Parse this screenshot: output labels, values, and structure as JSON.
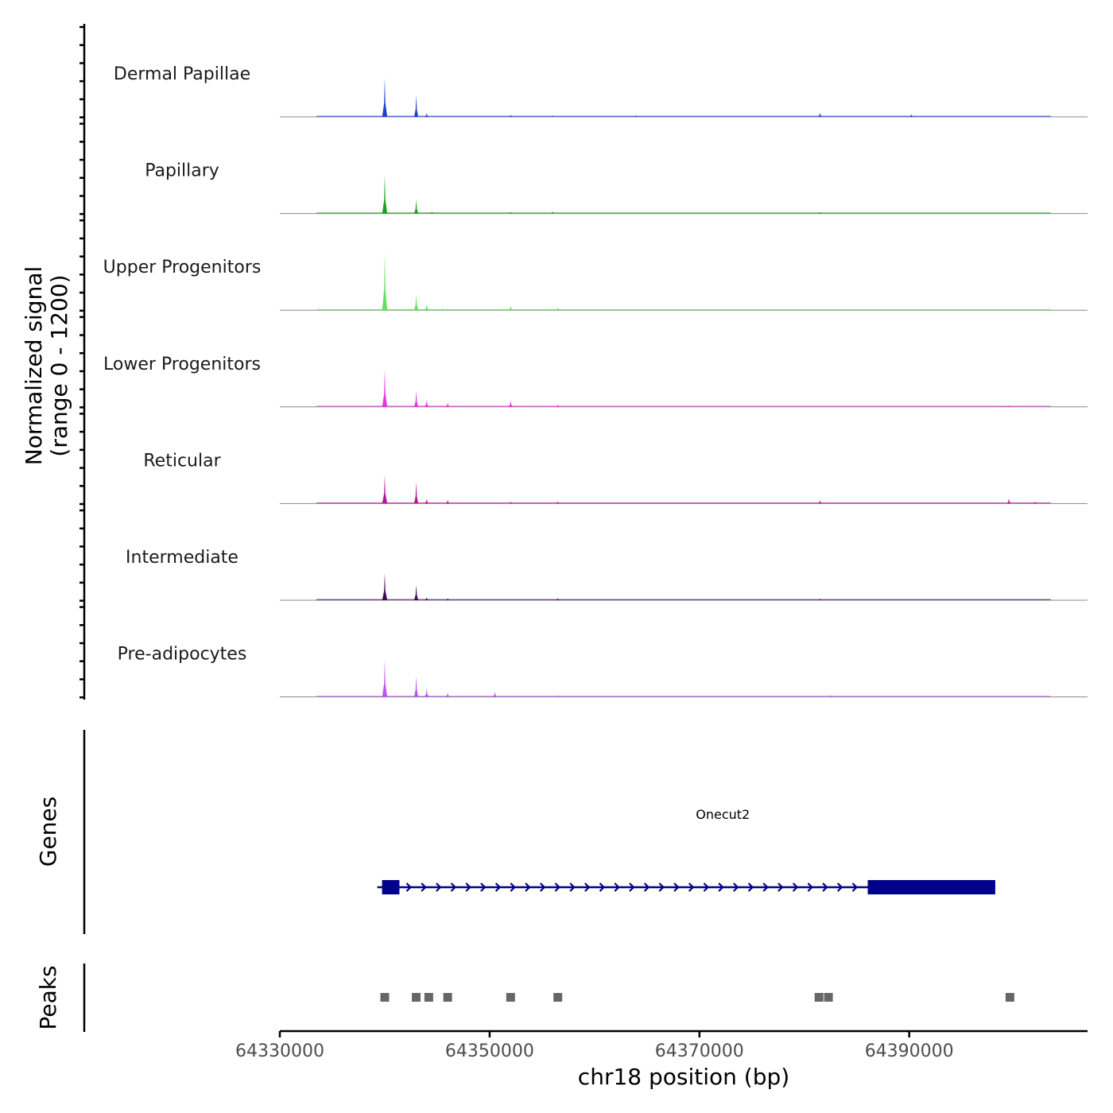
{
  "chart_data": {
    "type": "area",
    "chromosome": "chr18",
    "xlabel": "chr18 position (bp)",
    "xlim": [
      64330000,
      64407000
    ],
    "x_ticks": [
      64330000,
      64350000,
      64370000,
      64390000
    ],
    "x_tick_labels": [
      "64330000",
      "64350000",
      "64370000",
      "64390000"
    ],
    "signal_axis_label": [
      "Normalized signal",
      "(range 0 - 1200)"
    ],
    "signal_range": [
      0,
      1200
    ],
    "series": [
      {
        "name": "Dermal Papillae",
        "color": "#1f3fcf",
        "peaks": [
          [
            64340000,
            820
          ],
          [
            64343000,
            450
          ],
          [
            64344000,
            80
          ],
          [
            64352000,
            40
          ],
          [
            64356000,
            30
          ],
          [
            64364000,
            30
          ],
          [
            64381500,
            90
          ],
          [
            64390200,
            55
          ]
        ]
      },
      {
        "name": "Papillary",
        "color": "#1aa31a",
        "peaks": [
          [
            64340000,
            810
          ],
          [
            64343000,
            290
          ],
          [
            64344500,
            40
          ],
          [
            64352000,
            35
          ],
          [
            64356000,
            45
          ],
          [
            64381500,
            30
          ]
        ]
      },
      {
        "name": "Upper Progenitors",
        "color": "#5fe05f",
        "peaks": [
          [
            64340000,
            1200
          ],
          [
            64343000,
            320
          ],
          [
            64344000,
            120
          ],
          [
            64345500,
            40
          ],
          [
            64352000,
            90
          ],
          [
            64356500,
            55
          ]
        ]
      },
      {
        "name": "Lower Progenitors",
        "color": "#e633e0",
        "peaks": [
          [
            64340000,
            790
          ],
          [
            64343000,
            330
          ],
          [
            64344000,
            150
          ],
          [
            64346000,
            90
          ],
          [
            64352000,
            140
          ],
          [
            64356500,
            50
          ],
          [
            64399500,
            35
          ]
        ]
      },
      {
        "name": "Reticular",
        "color": "#b0179a",
        "peaks": [
          [
            64340000,
            600
          ],
          [
            64343000,
            450
          ],
          [
            64344000,
            100
          ],
          [
            64346000,
            80
          ],
          [
            64352000,
            40
          ],
          [
            64356500,
            45
          ],
          [
            64381500,
            70
          ],
          [
            64399500,
            110
          ],
          [
            64402000,
            40
          ]
        ]
      },
      {
        "name": "Intermediate",
        "color": "#3b0b5c",
        "peaks": [
          [
            64340000,
            570
          ],
          [
            64343000,
            320
          ],
          [
            64344000,
            60
          ],
          [
            64346000,
            40
          ],
          [
            64356500,
            40
          ],
          [
            64381500,
            30
          ]
        ]
      },
      {
        "name": "Pre-adipocytes",
        "color": "#bb55f0",
        "peaks": [
          [
            64340000,
            780
          ],
          [
            64343000,
            440
          ],
          [
            64344000,
            180
          ],
          [
            64346000,
            90
          ],
          [
            64350500,
            110
          ],
          [
            64356500,
            35
          ],
          [
            64382500,
            35
          ]
        ]
      }
    ],
    "genes_track_label": "Genes",
    "genes": [
      {
        "name": "Onecut2",
        "strand": "+",
        "color": "#00008b",
        "start": 64340200,
        "end": 64398200,
        "exons": [
          [
            64340200,
            64341400
          ],
          [
            64386500,
            64398200
          ]
        ]
      }
    ],
    "peaks_track_label": "Peaks",
    "peak_color": "#666666",
    "peak_regions": [
      64340000,
      64343000,
      64344200,
      64346000,
      64352000,
      64356500,
      64381400,
      64382300,
      64399600
    ]
  }
}
